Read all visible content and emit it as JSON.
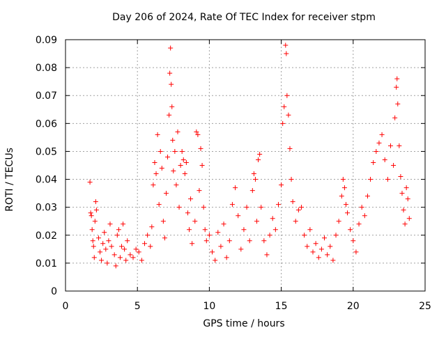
{
  "chart_data": {
    "type": "scatter",
    "title": "Day 206 of 2024, Rate Of TEC Index for receiver stpm",
    "xlabel": "GPS time / hours",
    "ylabel": "ROTI / TECUs",
    "xlim": [
      0,
      25
    ],
    "ylim": [
      0,
      0.09
    ],
    "x_ticks": [
      0,
      5,
      10,
      15,
      20,
      25
    ],
    "y_ticks": [
      0,
      0.01,
      0.02,
      0.03,
      0.04,
      0.05,
      0.06,
      0.07,
      0.08,
      0.09
    ],
    "x_tick_labels": [
      "0",
      "5",
      "10",
      "15",
      "20",
      "25"
    ],
    "y_tick_labels": [
      "0",
      "0.01",
      "0.02",
      "0.03",
      "0.04",
      "0.05",
      "0.06",
      "0.07",
      "0.08",
      "0.09"
    ],
    "grid": true,
    "marker": "+",
    "marker_color": "#ff0000",
    "series": [
      {
        "points": [
          [
            1.7,
            0.039
          ],
          [
            1.75,
            0.028
          ],
          [
            1.8,
            0.027
          ],
          [
            1.85,
            0.022
          ],
          [
            1.9,
            0.018
          ],
          [
            1.95,
            0.016
          ],
          [
            2.0,
            0.012
          ],
          [
            2.05,
            0.025
          ],
          [
            2.1,
            0.032
          ],
          [
            2.15,
            0.029
          ],
          [
            2.3,
            0.019
          ],
          [
            2.4,
            0.014
          ],
          [
            2.5,
            0.011
          ],
          [
            2.6,
            0.017
          ],
          [
            2.7,
            0.021
          ],
          [
            2.8,
            0.015
          ],
          [
            2.9,
            0.01
          ],
          [
            3.0,
            0.018
          ],
          [
            3.1,
            0.024
          ],
          [
            3.2,
            0.016
          ],
          [
            3.4,
            0.013
          ],
          [
            3.5,
            0.009
          ],
          [
            3.6,
            0.02
          ],
          [
            3.7,
            0.022
          ],
          [
            3.8,
            0.012
          ],
          [
            3.9,
            0.016
          ],
          [
            4.0,
            0.024
          ],
          [
            4.1,
            0.015
          ],
          [
            4.2,
            0.011
          ],
          [
            4.3,
            0.018
          ],
          [
            4.5,
            0.013
          ],
          [
            4.7,
            0.012
          ],
          [
            4.9,
            0.015
          ],
          [
            5.1,
            0.014
          ],
          [
            5.3,
            0.011
          ],
          [
            5.5,
            0.017
          ],
          [
            5.7,
            0.02
          ],
          [
            5.9,
            0.016
          ],
          [
            6.0,
            0.023
          ],
          [
            6.1,
            0.038
          ],
          [
            6.2,
            0.046
          ],
          [
            6.3,
            0.042
          ],
          [
            6.4,
            0.056
          ],
          [
            6.5,
            0.031
          ],
          [
            6.6,
            0.05
          ],
          [
            6.7,
            0.044
          ],
          [
            6.8,
            0.025
          ],
          [
            6.9,
            0.019
          ],
          [
            7.0,
            0.035
          ],
          [
            7.1,
            0.048
          ],
          [
            7.2,
            0.063
          ],
          [
            7.25,
            0.078
          ],
          [
            7.3,
            0.087
          ],
          [
            7.35,
            0.074
          ],
          [
            7.4,
            0.066
          ],
          [
            7.45,
            0.054
          ],
          [
            7.5,
            0.043
          ],
          [
            7.6,
            0.05
          ],
          [
            7.7,
            0.038
          ],
          [
            7.8,
            0.057
          ],
          [
            7.9,
            0.03
          ],
          [
            8.0,
            0.045
          ],
          [
            8.1,
            0.05
          ],
          [
            8.2,
            0.047
          ],
          [
            8.3,
            0.042
          ],
          [
            8.4,
            0.046
          ],
          [
            8.5,
            0.028
          ],
          [
            8.6,
            0.022
          ],
          [
            8.7,
            0.033
          ],
          [
            8.8,
            0.017
          ],
          [
            9.0,
            0.025
          ],
          [
            9.1,
            0.057
          ],
          [
            9.2,
            0.056
          ],
          [
            9.3,
            0.036
          ],
          [
            9.4,
            0.051
          ],
          [
            9.5,
            0.045
          ],
          [
            9.6,
            0.03
          ],
          [
            9.7,
            0.022
          ],
          [
            9.8,
            0.018
          ],
          [
            10.0,
            0.02
          ],
          [
            10.2,
            0.014
          ],
          [
            10.4,
            0.011
          ],
          [
            10.6,
            0.021
          ],
          [
            10.8,
            0.016
          ],
          [
            11.0,
            0.024
          ],
          [
            11.2,
            0.012
          ],
          [
            11.4,
            0.018
          ],
          [
            11.6,
            0.031
          ],
          [
            11.8,
            0.037
          ],
          [
            12.0,
            0.027
          ],
          [
            12.2,
            0.015
          ],
          [
            12.4,
            0.022
          ],
          [
            12.6,
            0.03
          ],
          [
            12.8,
            0.018
          ],
          [
            13.0,
            0.036
          ],
          [
            13.1,
            0.042
          ],
          [
            13.2,
            0.04
          ],
          [
            13.3,
            0.025
          ],
          [
            13.4,
            0.047
          ],
          [
            13.5,
            0.049
          ],
          [
            13.6,
            0.03
          ],
          [
            13.8,
            0.018
          ],
          [
            14.0,
            0.013
          ],
          [
            14.2,
            0.02
          ],
          [
            14.4,
            0.026
          ],
          [
            14.6,
            0.022
          ],
          [
            14.8,
            0.031
          ],
          [
            15.0,
            0.038
          ],
          [
            15.1,
            0.06
          ],
          [
            15.2,
            0.066
          ],
          [
            15.3,
            0.088
          ],
          [
            15.35,
            0.085
          ],
          [
            15.4,
            0.07
          ],
          [
            15.5,
            0.063
          ],
          [
            15.6,
            0.051
          ],
          [
            15.7,
            0.04
          ],
          [
            15.8,
            0.032
          ],
          [
            16.0,
            0.025
          ],
          [
            16.2,
            0.029
          ],
          [
            16.4,
            0.03
          ],
          [
            16.6,
            0.02
          ],
          [
            16.8,
            0.016
          ],
          [
            17.0,
            0.022
          ],
          [
            17.2,
            0.014
          ],
          [
            17.4,
            0.017
          ],
          [
            17.6,
            0.012
          ],
          [
            17.8,
            0.015
          ],
          [
            18.0,
            0.019
          ],
          [
            18.2,
            0.013
          ],
          [
            18.4,
            0.016
          ],
          [
            18.6,
            0.011
          ],
          [
            18.8,
            0.02
          ],
          [
            19.0,
            0.025
          ],
          [
            19.2,
            0.034
          ],
          [
            19.3,
            0.04
          ],
          [
            19.4,
            0.037
          ],
          [
            19.5,
            0.031
          ],
          [
            19.6,
            0.028
          ],
          [
            19.8,
            0.022
          ],
          [
            20.0,
            0.018
          ],
          [
            20.2,
            0.014
          ],
          [
            20.4,
            0.024
          ],
          [
            20.6,
            0.03
          ],
          [
            20.8,
            0.027
          ],
          [
            21.0,
            0.034
          ],
          [
            21.2,
            0.04
          ],
          [
            21.4,
            0.046
          ],
          [
            21.6,
            0.05
          ],
          [
            21.8,
            0.053
          ],
          [
            22.0,
            0.056
          ],
          [
            22.2,
            0.047
          ],
          [
            22.4,
            0.04
          ],
          [
            22.6,
            0.052
          ],
          [
            22.8,
            0.045
          ],
          [
            22.9,
            0.062
          ],
          [
            23.0,
            0.073
          ],
          [
            23.05,
            0.076
          ],
          [
            23.1,
            0.067
          ],
          [
            23.2,
            0.052
          ],
          [
            23.3,
            0.041
          ],
          [
            23.4,
            0.035
          ],
          [
            23.5,
            0.029
          ],
          [
            23.6,
            0.024
          ],
          [
            23.7,
            0.037
          ],
          [
            23.8,
            0.033
          ],
          [
            23.9,
            0.026
          ]
        ]
      }
    ]
  }
}
